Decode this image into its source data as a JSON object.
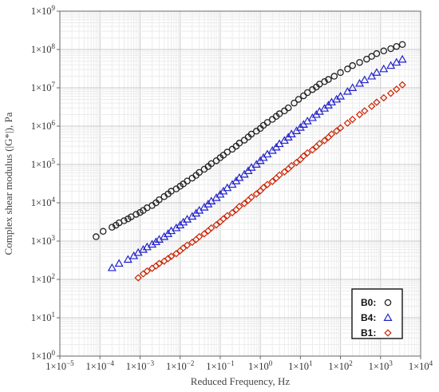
{
  "chart_data": {
    "type": "scatter",
    "xscale": "log",
    "yscale": "log",
    "xlim": [
      1e-05,
      10000.0
    ],
    "ylim": [
      1,
      1000000000.0
    ],
    "xlabel": "Reduced Frequency, Hz",
    "ylabel": "Complex shear modulus (|G*|), Pa",
    "grid": true,
    "legend_position": "bottom-right",
    "x_ticks": [
      {
        "exp": -5,
        "label": "1×10"
      },
      {
        "exp": -4,
        "label": "1×10"
      },
      {
        "exp": -3,
        "label": "1×10"
      },
      {
        "exp": -2,
        "label": "1×10"
      },
      {
        "exp": -1,
        "label": "1×10"
      },
      {
        "exp": 0,
        "label": "1×10"
      },
      {
        "exp": 1,
        "label": "1×10"
      },
      {
        "exp": 2,
        "label": "1×10"
      },
      {
        "exp": 3,
        "label": "1×10"
      },
      {
        "exp": 4,
        "label": "1×10"
      }
    ],
    "y_ticks": [
      {
        "exp": 0,
        "label": "1×10"
      },
      {
        "exp": 1,
        "label": "1×10"
      },
      {
        "exp": 2,
        "label": "1×10"
      },
      {
        "exp": 3,
        "label": "1×10"
      },
      {
        "exp": 4,
        "label": "1×10"
      },
      {
        "exp": 5,
        "label": "1×10"
      },
      {
        "exp": 6,
        "label": "1×10"
      },
      {
        "exp": 7,
        "label": "1×10"
      },
      {
        "exp": 8,
        "label": "1×10"
      },
      {
        "exp": 9,
        "label": "1×10"
      }
    ],
    "series": [
      {
        "name": "B0:",
        "marker": "circle",
        "color": "#222222",
        "points": [
          [
            8e-05,
            1300
          ],
          [
            0.00012,
            1800
          ],
          [
            0.0002,
            2300
          ],
          [
            0.00025,
            2600
          ],
          [
            0.0003,
            3000
          ],
          [
            0.0004,
            3400
          ],
          [
            0.0005,
            3800
          ],
          [
            0.0006,
            4300
          ],
          [
            0.0008,
            5000
          ],
          [
            0.001,
            5600
          ],
          [
            0.0012,
            6300
          ],
          [
            0.0015,
            7400
          ],
          [
            0.002,
            8500
          ],
          [
            0.0025,
            10000
          ],
          [
            0.003,
            12000
          ],
          [
            0.004,
            14500
          ],
          [
            0.005,
            17000
          ],
          [
            0.006,
            20000
          ],
          [
            0.008,
            23000
          ],
          [
            0.01,
            27000
          ],
          [
            0.012,
            31000
          ],
          [
            0.015,
            37000
          ],
          [
            0.02,
            44000
          ],
          [
            0.025,
            52000
          ],
          [
            0.03,
            62000
          ],
          [
            0.04,
            75000
          ],
          [
            0.05,
            88000
          ],
          [
            0.06,
            105000
          ],
          [
            0.08,
            125000
          ],
          [
            0.1,
            150000
          ],
          [
            0.12,
            175000
          ],
          [
            0.15,
            210000
          ],
          [
            0.2,
            250000
          ],
          [
            0.25,
            300000
          ],
          [
            0.3,
            360000
          ],
          [
            0.4,
            430000
          ],
          [
            0.5,
            520000
          ],
          [
            0.6,
            620000
          ],
          [
            0.8,
            740000
          ],
          [
            1,
            870000
          ],
          [
            1.2,
            1050000
          ],
          [
            1.5,
            1250000
          ],
          [
            2,
            1500000
          ],
          [
            2.5,
            1800000
          ],
          [
            3,
            2100000
          ],
          [
            4,
            2500000
          ],
          [
            5,
            3000000
          ],
          [
            7,
            4000000
          ],
          [
            9,
            5000000
          ],
          [
            12,
            6200000
          ],
          [
            15,
            7500000
          ],
          [
            20,
            9000000
          ],
          [
            25,
            10500000
          ],
          [
            30,
            12500000
          ],
          [
            40,
            14500000
          ],
          [
            50,
            16500000
          ],
          [
            70,
            20000000
          ],
          [
            100,
            25000000
          ],
          [
            150,
            31000000
          ],
          [
            200,
            38000000
          ],
          [
            300,
            46000000
          ],
          [
            450,
            56000000
          ],
          [
            600,
            66000000
          ],
          [
            800,
            78000000
          ],
          [
            1200,
            92000000
          ],
          [
            1800,
            105000000
          ],
          [
            2500,
            120000000
          ],
          [
            3500,
            135000000
          ]
        ]
      },
      {
        "name": "B4:",
        "marker": "triangle",
        "color": "#2222cc",
        "points": [
          [
            0.0002,
            200
          ],
          [
            0.0003,
            260
          ],
          [
            0.0005,
            330
          ],
          [
            0.0007,
            410
          ],
          [
            0.0009,
            500
          ],
          [
            0.0012,
            600
          ],
          [
            0.0015,
            700
          ],
          [
            0.002,
            820
          ],
          [
            0.0025,
            950
          ],
          [
            0.003,
            1100
          ],
          [
            0.004,
            1300
          ],
          [
            0.005,
            1550
          ],
          [
            0.006,
            1850
          ],
          [
            0.008,
            2200
          ],
          [
            0.01,
            2600
          ],
          [
            0.012,
            3100
          ],
          [
            0.015,
            3700
          ],
          [
            0.02,
            4400
          ],
          [
            0.025,
            5300
          ],
          [
            0.03,
            6300
          ],
          [
            0.04,
            7600
          ],
          [
            0.05,
            9200
          ],
          [
            0.06,
            11000
          ],
          [
            0.08,
            13500
          ],
          [
            0.1,
            16500
          ],
          [
            0.12,
            20000
          ],
          [
            0.15,
            24500
          ],
          [
            0.2,
            30000
          ],
          [
            0.25,
            37000
          ],
          [
            0.3,
            45000
          ],
          [
            0.4,
            55000
          ],
          [
            0.5,
            68000
          ],
          [
            0.6,
            83000
          ],
          [
            0.8,
            100000
          ],
          [
            1,
            125000
          ],
          [
            1.2,
            150000
          ],
          [
            1.5,
            185000
          ],
          [
            2,
            230000
          ],
          [
            2.5,
            280000
          ],
          [
            3,
            345000
          ],
          [
            4,
            420000
          ],
          [
            5,
            510000
          ],
          [
            6,
            620000
          ],
          [
            8,
            750000
          ],
          [
            10,
            920000
          ],
          [
            12,
            1100000
          ],
          [
            15,
            1350000
          ],
          [
            20,
            1650000
          ],
          [
            25,
            2000000
          ],
          [
            30,
            2400000
          ],
          [
            40,
            2900000
          ],
          [
            50,
            3500000
          ],
          [
            60,
            4200000
          ],
          [
            80,
            5000000
          ],
          [
            100,
            6000000
          ],
          [
            150,
            8000000
          ],
          [
            200,
            10000000
          ],
          [
            300,
            13000000
          ],
          [
            400,
            16000000
          ],
          [
            600,
            20000000
          ],
          [
            800,
            25000000
          ],
          [
            1200,
            31000000
          ],
          [
            1800,
            38000000
          ],
          [
            2500,
            46000000
          ],
          [
            3500,
            55000000
          ]
        ]
      },
      {
        "name": "B1:",
        "marker": "diamond",
        "color": "#cc2200",
        "points": [
          [
            0.0009,
            110
          ],
          [
            0.0012,
            140
          ],
          [
            0.0015,
            165
          ],
          [
            0.002,
            195
          ],
          [
            0.0025,
            225
          ],
          [
            0.003,
            260
          ],
          [
            0.004,
            300
          ],
          [
            0.005,
            350
          ],
          [
            0.006,
            400
          ],
          [
            0.008,
            470
          ],
          [
            0.01,
            560
          ],
          [
            0.012,
            660
          ],
          [
            0.015,
            780
          ],
          [
            0.02,
            930
          ],
          [
            0.025,
            1100
          ],
          [
            0.03,
            1300
          ],
          [
            0.04,
            1550
          ],
          [
            0.05,
            1850
          ],
          [
            0.06,
            2200
          ],
          [
            0.08,
            2650
          ],
          [
            0.1,
            3200
          ],
          [
            0.12,
            3800
          ],
          [
            0.15,
            4600
          ],
          [
            0.2,
            5500
          ],
          [
            0.25,
            6600
          ],
          [
            0.3,
            8000
          ],
          [
            0.4,
            9600
          ],
          [
            0.5,
            11600
          ],
          [
            0.6,
            14000
          ],
          [
            0.8,
            17000
          ],
          [
            1,
            20500
          ],
          [
            1.2,
            25000
          ],
          [
            1.5,
            30000
          ],
          [
            2,
            36000
          ],
          [
            2.5,
            44000
          ],
          [
            3,
            53000
          ],
          [
            4,
            64000
          ],
          [
            5,
            77000
          ],
          [
            6,
            93000
          ],
          [
            8,
            112000
          ],
          [
            10,
            135000
          ],
          [
            12,
            165000
          ],
          [
            15,
            200000
          ],
          [
            20,
            240000
          ],
          [
            25,
            290000
          ],
          [
            30,
            350000
          ],
          [
            40,
            420000
          ],
          [
            50,
            510000
          ],
          [
            60,
            620000
          ],
          [
            80,
            750000
          ],
          [
            100,
            900000
          ],
          [
            150,
            1200000
          ],
          [
            200,
            1500000
          ],
          [
            300,
            2000000
          ],
          [
            400,
            2500000
          ],
          [
            600,
            3300000
          ],
          [
            800,
            4200000
          ],
          [
            1200,
            5500000
          ],
          [
            1800,
            7200000
          ],
          [
            2500,
            9200000
          ],
          [
            3500,
            12000000
          ]
        ]
      }
    ]
  }
}
